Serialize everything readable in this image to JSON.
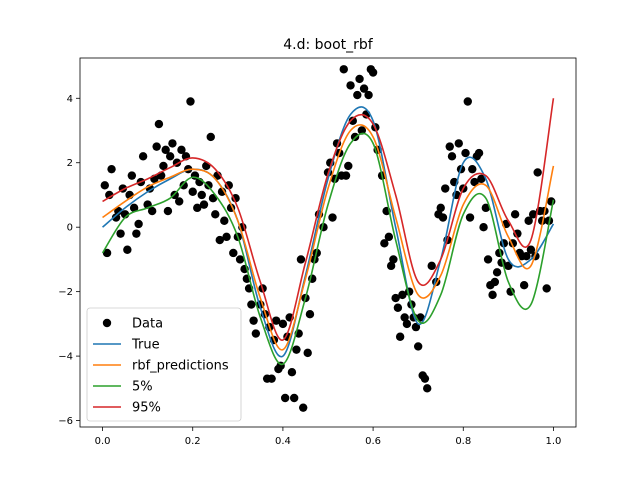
{
  "chart_data": {
    "type": "line",
    "title": "4.d: boot_rbf",
    "xlabel": "",
    "ylabel": "",
    "xlim": [
      -0.05,
      1.05
    ],
    "ylim": [
      -6.2,
      5.25
    ],
    "xticks": [
      "0.0",
      "0.2",
      "0.4",
      "0.6",
      "0.8",
      "1.0"
    ],
    "xtick_values": [
      0.0,
      0.2,
      0.4,
      0.6,
      0.8,
      1.0
    ],
    "yticks": [
      "−6",
      "−4",
      "−2",
      "0",
      "2",
      "4"
    ],
    "ytick_values": [
      -6,
      -4,
      -2,
      0,
      2,
      4
    ],
    "grid": false,
    "legend_position": "lower-left",
    "x": [
      0.0,
      0.05,
      0.1,
      0.15,
      0.2,
      0.25,
      0.3,
      0.35,
      0.4,
      0.45,
      0.5,
      0.55,
      0.6,
      0.65,
      0.7,
      0.75,
      0.8,
      0.85,
      0.9,
      0.95,
      1.0
    ],
    "series": [
      {
        "name": "True",
        "kind": "line",
        "color": "#1f77b4",
        "values": [
          0.0,
          0.6,
          1.1,
          1.5,
          1.8,
          1.5,
          0.2,
          -2.5,
          -4.0,
          -1.5,
          1.5,
          3.5,
          3.3,
          0.0,
          -3.0,
          -1.0,
          2.0,
          1.5,
          -1.0,
          -1.0,
          0.1
        ]
      },
      {
        "name": "rbf_predictions",
        "kind": "line",
        "color": "#ff7f0e",
        "values": [
          0.3,
          0.8,
          1.25,
          1.55,
          1.8,
          1.5,
          0.2,
          -2.2,
          -3.8,
          -1.6,
          1.2,
          3.0,
          2.8,
          0.3,
          -2.1,
          -1.5,
          0.7,
          1.3,
          -0.3,
          -1.2,
          1.9
        ]
      },
      {
        "name": "5%",
        "kind": "line",
        "color": "#2ca02c",
        "values": [
          -0.8,
          0.3,
          0.6,
          0.9,
          1.55,
          1.0,
          -0.3,
          -2.8,
          -4.25,
          -2.2,
          0.7,
          2.6,
          2.6,
          -0.4,
          -2.9,
          -2.1,
          0.4,
          0.9,
          -1.7,
          -2.4,
          0.85
        ]
      },
      {
        "name": "95%",
        "kind": "line",
        "color": "#d62728",
        "values": [
          0.8,
          1.2,
          1.5,
          1.85,
          2.15,
          1.8,
          0.6,
          -1.7,
          -3.5,
          -1.1,
          1.65,
          3.3,
          3.2,
          1.0,
          -1.7,
          -1.0,
          1.2,
          1.6,
          0.2,
          -0.4,
          4.0
        ]
      },
      {
        "name": "Data",
        "kind": "scatter",
        "color": "#000000",
        "points": [
          [
            0.005,
            1.3
          ],
          [
            0.01,
            -0.8
          ],
          [
            0.015,
            1.0
          ],
          [
            0.02,
            1.8
          ],
          [
            0.03,
            0.3
          ],
          [
            0.035,
            0.5
          ],
          [
            0.04,
            -0.2
          ],
          [
            0.045,
            1.2
          ],
          [
            0.05,
            0.4
          ],
          [
            0.055,
            -0.7
          ],
          [
            0.06,
            1.0
          ],
          [
            0.065,
            1.6
          ],
          [
            0.07,
            0.6
          ],
          [
            0.075,
            -0.2
          ],
          [
            0.08,
            0.1
          ],
          [
            0.085,
            1.4
          ],
          [
            0.09,
            2.2
          ],
          [
            0.1,
            0.7
          ],
          [
            0.105,
            1.2
          ],
          [
            0.11,
            0.5
          ],
          [
            0.115,
            1.5
          ],
          [
            0.12,
            2.5
          ],
          [
            0.125,
            3.2
          ],
          [
            0.13,
            1.6
          ],
          [
            0.135,
            1.9
          ],
          [
            0.14,
            2.4
          ],
          [
            0.145,
            0.5
          ],
          [
            0.15,
            2.2
          ],
          [
            0.155,
            2.6
          ],
          [
            0.16,
            1.0
          ],
          [
            0.165,
            2.0
          ],
          [
            0.17,
            0.8
          ],
          [
            0.175,
            2.4
          ],
          [
            0.18,
            1.3
          ],
          [
            0.185,
            2.2
          ],
          [
            0.19,
            1.8
          ],
          [
            0.195,
            3.9
          ],
          [
            0.2,
            1.1
          ],
          [
            0.205,
            1.6
          ],
          [
            0.21,
            0.6
          ],
          [
            0.215,
            1.4
          ],
          [
            0.22,
            1.0
          ],
          [
            0.225,
            0.7
          ],
          [
            0.23,
            1.9
          ],
          [
            0.235,
            1.3
          ],
          [
            0.24,
            2.8
          ],
          [
            0.245,
            0.9
          ],
          [
            0.25,
            0.4
          ],
          [
            0.255,
            1.6
          ],
          [
            0.26,
            -0.4
          ],
          [
            0.265,
            1.1
          ],
          [
            0.27,
            0.2
          ],
          [
            0.275,
            -0.3
          ],
          [
            0.28,
            1.3
          ],
          [
            0.285,
            0.6
          ],
          [
            0.29,
            -0.8
          ],
          [
            0.295,
            0.9
          ],
          [
            0.3,
            -0.3
          ],
          [
            0.305,
            -1.0
          ],
          [
            0.31,
            0.0
          ],
          [
            0.315,
            -1.3
          ],
          [
            0.32,
            -1.6
          ],
          [
            0.325,
            -1.9
          ],
          [
            0.33,
            -2.4
          ],
          [
            0.335,
            -2.9
          ],
          [
            0.34,
            -3.3
          ],
          [
            0.35,
            -2.4
          ],
          [
            0.355,
            -1.9
          ],
          [
            0.36,
            -2.7
          ],
          [
            0.365,
            -4.7
          ],
          [
            0.37,
            -3.1
          ],
          [
            0.375,
            -4.7
          ],
          [
            0.38,
            -3.5
          ],
          [
            0.385,
            -2.9
          ],
          [
            0.39,
            -4.4
          ],
          [
            0.395,
            -4.3
          ],
          [
            0.4,
            -3.0
          ],
          [
            0.405,
            -5.3
          ],
          [
            0.41,
            -3.4
          ],
          [
            0.415,
            -2.8
          ],
          [
            0.42,
            -4.5
          ],
          [
            0.425,
            -5.3
          ],
          [
            0.43,
            -3.8
          ],
          [
            0.435,
            -3.3
          ],
          [
            0.44,
            -1.0
          ],
          [
            0.445,
            -5.6
          ],
          [
            0.45,
            -2.2
          ],
          [
            0.455,
            -3.9
          ],
          [
            0.46,
            -2.7
          ],
          [
            0.465,
            -1.6
          ],
          [
            0.47,
            -1.0
          ],
          [
            0.475,
            -0.8
          ],
          [
            0.48,
            0.4
          ],
          [
            0.49,
            0.0
          ],
          [
            0.5,
            1.7
          ],
          [
            0.505,
            2.0
          ],
          [
            0.51,
            0.3
          ],
          [
            0.515,
            1.5
          ],
          [
            0.52,
            2.6
          ],
          [
            0.525,
            2.3
          ],
          [
            0.53,
            1.6
          ],
          [
            0.535,
            4.9
          ],
          [
            0.54,
            1.6
          ],
          [
            0.545,
            1.9
          ],
          [
            0.55,
            4.4
          ],
          [
            0.555,
            3.3
          ],
          [
            0.56,
            2.8
          ],
          [
            0.565,
            4.1
          ],
          [
            0.57,
            4.6
          ],
          [
            0.575,
            3.0
          ],
          [
            0.58,
            4.3
          ],
          [
            0.585,
            3.5
          ],
          [
            0.59,
            4.1
          ],
          [
            0.595,
            4.9
          ],
          [
            0.6,
            4.8
          ],
          [
            0.605,
            3.1
          ],
          [
            0.61,
            2.4
          ],
          [
            0.62,
            1.6
          ],
          [
            0.625,
            -0.5
          ],
          [
            0.63,
            0.5
          ],
          [
            0.635,
            -0.3
          ],
          [
            0.64,
            -1.2
          ],
          [
            0.645,
            -1.0
          ],
          [
            0.65,
            -2.2
          ],
          [
            0.655,
            -2.5
          ],
          [
            0.66,
            -3.4
          ],
          [
            0.665,
            -2.1
          ],
          [
            0.67,
            -2.8
          ],
          [
            0.675,
            -3.0
          ],
          [
            0.68,
            -2.0
          ],
          [
            0.685,
            -2.4
          ],
          [
            0.69,
            -2.8
          ],
          [
            0.695,
            -3.1
          ],
          [
            0.7,
            -3.7
          ],
          [
            0.705,
            -2.8
          ],
          [
            0.71,
            -4.6
          ],
          [
            0.715,
            -4.7
          ],
          [
            0.72,
            -5.0
          ],
          [
            0.73,
            -1.2
          ],
          [
            0.74,
            -1.7
          ],
          [
            0.745,
            0.4
          ],
          [
            0.75,
            0.6
          ],
          [
            0.755,
            0.3
          ],
          [
            0.76,
            1.2
          ],
          [
            0.765,
            -0.4
          ],
          [
            0.77,
            2.5
          ],
          [
            0.775,
            2.2
          ],
          [
            0.78,
            1.4
          ],
          [
            0.785,
            1.0
          ],
          [
            0.79,
            2.6
          ],
          [
            0.795,
            1.8
          ],
          [
            0.8,
            1.2
          ],
          [
            0.805,
            2.3
          ],
          [
            0.81,
            3.9
          ],
          [
            0.815,
            0.3
          ],
          [
            0.82,
            1.8
          ],
          [
            0.825,
            1.4
          ],
          [
            0.83,
            2.2
          ],
          [
            0.835,
            2.3
          ],
          [
            0.84,
            1.5
          ],
          [
            0.845,
            0.0
          ],
          [
            0.85,
            0.6
          ],
          [
            0.855,
            -1.0
          ],
          [
            0.86,
            -1.8
          ],
          [
            0.865,
            -2.1
          ],
          [
            0.87,
            -1.7
          ],
          [
            0.875,
            -1.4
          ],
          [
            0.88,
            -0.8
          ],
          [
            0.885,
            -1.1
          ],
          [
            0.89,
            -0.5
          ],
          [
            0.895,
            0.1
          ],
          [
            0.9,
            -1.2
          ],
          [
            0.905,
            -2.0
          ],
          [
            0.91,
            -0.5
          ],
          [
            0.915,
            0.4
          ],
          [
            0.92,
            -0.2
          ],
          [
            0.925,
            -0.8
          ],
          [
            0.93,
            -0.9
          ],
          [
            0.935,
            -1.8
          ],
          [
            0.94,
            -0.9
          ],
          [
            0.945,
            0.2
          ],
          [
            0.95,
            -0.7
          ],
          [
            0.955,
            0.4
          ],
          [
            0.96,
            -0.9
          ],
          [
            0.965,
            1.7
          ],
          [
            0.97,
            0.5
          ],
          [
            0.975,
            0.2
          ],
          [
            0.98,
            0.5
          ],
          [
            0.985,
            -1.9
          ],
          [
            0.99,
            0.2
          ],
          [
            0.995,
            0.8
          ]
        ]
      }
    ]
  }
}
